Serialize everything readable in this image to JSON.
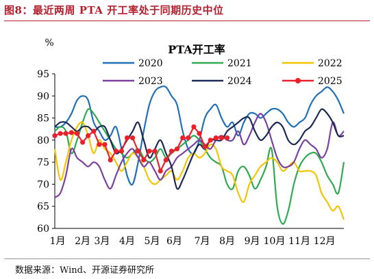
{
  "figure": {
    "title": "图8：最近两周 PTA 开工率处于同期历史中位",
    "source": "数据来源：Wind、开源证券研究所"
  },
  "chart_data": {
    "type": "line",
    "title": "PTA开工率",
    "ylabel": "%",
    "xlabel": "",
    "ylim": [
      60,
      95
    ],
    "yticks": [
      60,
      65,
      70,
      75,
      80,
      85,
      90,
      95
    ],
    "xlim": [
      0,
      52
    ],
    "x_tick_labels": [
      {
        "label": "1月",
        "x": 0.5
      },
      {
        "label": "2月",
        "x": 5
      },
      {
        "label": "3月",
        "x": 8.5
      },
      {
        "label": "4月",
        "x": 13
      },
      {
        "label": "5月",
        "x": 17.5
      },
      {
        "label": "6月",
        "x": 21.5
      },
      {
        "label": "7月",
        "x": 26.5
      },
      {
        "label": "8月",
        "x": 31
      },
      {
        "label": "9月",
        "x": 35.5
      },
      {
        "label": "10月",
        "x": 39.5
      },
      {
        "label": "11月",
        "x": 44
      },
      {
        "label": "12月",
        "x": 48.5
      }
    ],
    "grid": false,
    "legend_position": "top",
    "series": [
      {
        "name": "2020",
        "color": "#1f6fb5",
        "marker": false,
        "values": [
          83,
          83,
          84,
          86,
          89,
          90,
          89,
          84,
          82,
          80,
          81,
          83,
          78,
          72,
          70,
          75,
          82,
          88,
          91,
          92,
          92,
          90,
          88,
          82,
          78,
          77,
          80,
          85,
          87,
          88,
          85,
          83,
          84,
          81,
          84,
          86,
          86,
          85,
          86,
          87,
          87,
          86,
          84,
          83,
          84,
          85,
          88,
          90,
          91,
          92,
          91,
          89,
          86
        ]
      },
      {
        "name": "2021",
        "color": "#2eaa4f",
        "marker": false,
        "values": [
          82,
          83,
          82,
          77,
          80,
          84,
          87,
          86,
          84,
          82,
          80,
          78,
          77,
          76,
          77,
          78,
          76,
          75,
          76,
          78,
          76,
          77,
          78,
          79,
          80,
          81,
          80,
          78,
          76,
          75,
          74,
          70,
          69,
          73,
          74,
          72,
          69,
          71,
          74,
          78,
          65,
          61,
          64,
          70,
          74,
          76,
          77,
          77,
          75,
          72,
          70,
          68,
          75
        ]
      },
      {
        "name": "2022",
        "color": "#f5c400",
        "marker": false,
        "values": [
          78,
          71,
          75,
          80,
          83,
          84,
          81,
          77,
          80,
          78,
          77,
          75,
          73,
          75,
          77,
          76,
          74,
          71,
          70,
          71,
          72,
          73,
          71,
          73,
          76,
          77,
          76,
          77,
          79,
          78,
          74,
          73,
          72,
          68,
          66,
          70,
          72,
          74,
          75,
          76,
          75,
          73,
          74,
          75,
          73,
          73,
          73,
          72,
          68,
          66,
          64,
          65,
          62
        ]
      },
      {
        "name": "2023",
        "color": "#7b3fa0",
        "marker": false,
        "values": [
          67,
          68,
          72,
          78,
          76,
          75,
          74,
          75,
          74,
          71,
          69,
          72,
          75,
          77,
          78,
          76,
          74,
          75,
          73,
          71,
          73,
          74,
          76,
          77,
          78,
          79,
          80,
          79,
          78,
          80,
          81,
          80,
          80,
          82,
          79,
          81,
          84,
          86,
          84,
          80,
          76,
          74,
          74,
          75,
          78,
          80,
          79,
          78,
          76,
          78,
          84,
          81,
          82
        ]
      },
      {
        "name": "2024",
        "color": "#1b2a55",
        "marker": false,
        "values": [
          83,
          84,
          84,
          83,
          82,
          83,
          83,
          82,
          83,
          83,
          80,
          77,
          78,
          80,
          82,
          84,
          80,
          76,
          78,
          80,
          77,
          74,
          69,
          71,
          74,
          77,
          79,
          78,
          80,
          80,
          80,
          82,
          83,
          84,
          85,
          85,
          82,
          80,
          81,
          83,
          84,
          83,
          80,
          79,
          80,
          82,
          83,
          85,
          87,
          86,
          84,
          81,
          81
        ]
      },
      {
        "name": "2025",
        "color": "#e8212b",
        "marker": true,
        "values": [
          81,
          81.5,
          81.5,
          81.7,
          81.5,
          79.5,
          81,
          82,
          79,
          79,
          75.5,
          77.5,
          77.5,
          80.5,
          80.5,
          77.5,
          75.5,
          77.5,
          77.5,
          73,
          75.5,
          77.5,
          78,
          80.5,
          80.5,
          83,
          81.5,
          78.5,
          80,
          80.5,
          80.5,
          80.5
        ]
      }
    ]
  }
}
